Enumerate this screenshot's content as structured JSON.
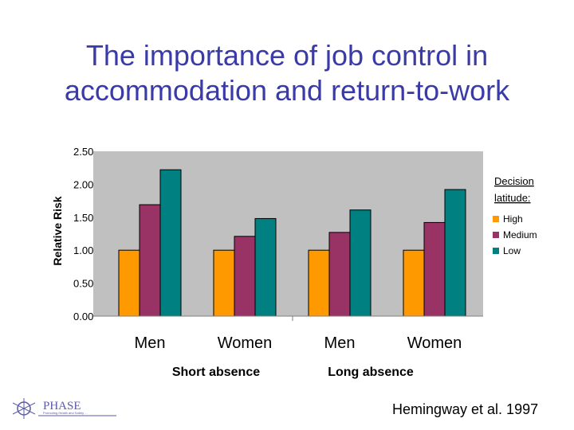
{
  "slide": {
    "title": "The importance of job control in accommodation and return-to-work",
    "citation": "Hemingway et al. 1997",
    "logo_text": "PHASE",
    "logo_tagline": "Promoting Health and Safety ..."
  },
  "chart_data": {
    "type": "bar",
    "title": "",
    "ylabel": "Relative Risk",
    "ylim": [
      0,
      2.5
    ],
    "yticks": [
      "0.00",
      "0.50",
      "1.00",
      "1.50",
      "2.00",
      "2.50"
    ],
    "ytick_values": [
      0,
      0.5,
      1.0,
      1.5,
      2.0,
      2.5
    ],
    "categories": [
      "Men",
      "Women",
      "Men",
      "Women"
    ],
    "groups": [
      "Short absence",
      "Long absence"
    ],
    "legend_title": "Decision latitude:",
    "legend_position": "right",
    "grid": false,
    "series": [
      {
        "name": "High",
        "color": "#ff9900",
        "values": [
          1.0,
          1.0,
          1.0,
          1.0
        ]
      },
      {
        "name": "Medium",
        "color": "#993366",
        "values": [
          1.69,
          1.21,
          1.27,
          1.42
        ]
      },
      {
        "name": "Low",
        "color": "#008080",
        "values": [
          2.22,
          1.48,
          1.61,
          1.92
        ]
      }
    ]
  }
}
